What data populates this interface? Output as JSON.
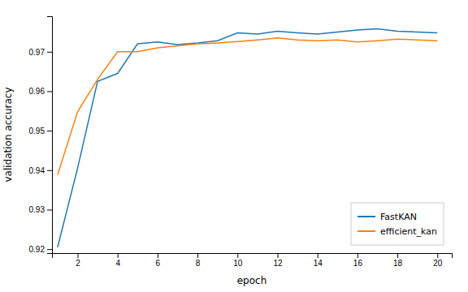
{
  "chart_data": {
    "type": "line",
    "xlabel": "epoch",
    "ylabel": "validation accuracy",
    "x": [
      1,
      2,
      3,
      4,
      5,
      6,
      7,
      8,
      9,
      10,
      11,
      12,
      13,
      14,
      15,
      16,
      17,
      18,
      19,
      20
    ],
    "series": [
      {
        "name": "FastKAN",
        "color": "#1f77b4",
        "values": [
          0.9205,
          0.9405,
          0.9625,
          0.9645,
          0.972,
          0.9725,
          0.9718,
          0.9722,
          0.9728,
          0.9748,
          0.9745,
          0.9752,
          0.9748,
          0.9745,
          0.975,
          0.9755,
          0.9758,
          0.9752,
          0.975,
          0.9748
        ]
      },
      {
        "name": "efficient_kan",
        "color": "#ff7f0e",
        "values": [
          0.9388,
          0.9548,
          0.963,
          0.97,
          0.97,
          0.971,
          0.9715,
          0.972,
          0.9722,
          0.9726,
          0.973,
          0.9735,
          0.973,
          0.9728,
          0.973,
          0.9725,
          0.9728,
          0.9732,
          0.973,
          0.9728
        ]
      }
    ],
    "xlim": [
      0.72,
      20.72
    ],
    "ylim": [
      0.919,
      0.979
    ],
    "xticks": [
      2,
      4,
      6,
      8,
      10,
      12,
      14,
      16,
      18,
      20
    ],
    "yticks": [
      0.92,
      0.93,
      0.94,
      0.95,
      0.96,
      0.97
    ],
    "grid": false,
    "legend": "lower right"
  }
}
